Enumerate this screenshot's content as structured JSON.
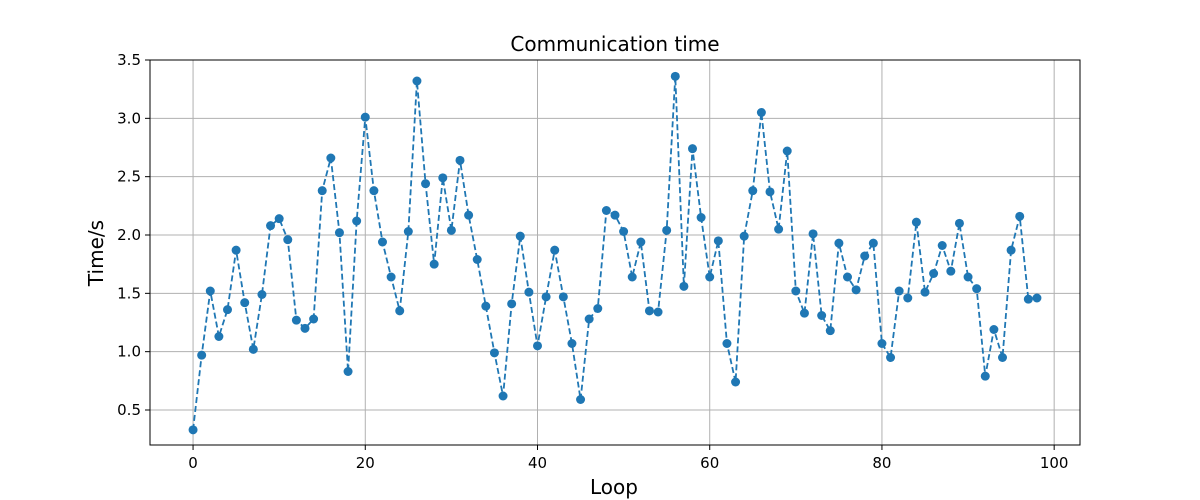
{
  "chart_data": {
    "type": "line",
    "title": "Communication time",
    "xlabel": "Loop",
    "ylabel": "Time/s",
    "xlim": [
      -5,
      103
    ],
    "ylim": [
      0.2,
      3.5
    ],
    "xticks": [
      0,
      20,
      40,
      60,
      80,
      100
    ],
    "yticks": [
      0.5,
      1.0,
      1.5,
      2.0,
      2.5,
      3.0,
      3.5
    ],
    "xtick_labels": [
      "0",
      "20",
      "40",
      "60",
      "80",
      "100"
    ],
    "ytick_labels": [
      "0.5",
      "1.0",
      "1.5",
      "2.0",
      "2.5",
      "3.0",
      "3.5"
    ],
    "grid": true,
    "line_style": "dashed",
    "marker": "circle",
    "series_color": "#1f77b4",
    "series": [
      {
        "x": [
          0,
          1,
          2,
          3,
          4,
          5,
          6,
          7,
          8,
          9,
          10,
          11,
          12,
          13,
          14,
          15,
          16,
          17,
          18,
          19,
          20,
          21,
          22,
          23,
          24,
          25,
          26,
          27,
          28,
          29,
          30,
          31,
          32,
          33,
          34,
          35,
          36,
          37,
          38,
          39,
          40,
          41,
          42,
          43,
          44,
          45,
          46,
          47,
          48,
          49,
          50,
          51,
          52,
          53,
          54,
          55,
          56,
          57,
          58,
          59,
          60,
          61,
          62,
          63,
          64,
          65,
          66,
          67,
          68,
          69,
          70,
          71,
          72,
          73,
          74,
          75,
          76,
          77,
          78,
          79,
          80,
          81,
          82,
          83,
          84,
          85,
          86,
          87,
          88,
          89,
          90,
          91,
          92,
          93,
          94,
          95,
          96,
          97,
          98
        ],
        "values": [
          0.33,
          0.97,
          1.52,
          1.13,
          1.36,
          1.87,
          1.42,
          1.02,
          1.49,
          2.08,
          2.14,
          1.96,
          1.27,
          1.2,
          1.28,
          2.38,
          2.66,
          2.02,
          0.83,
          2.12,
          3.01,
          2.38,
          1.94,
          1.64,
          1.35,
          2.03,
          3.32,
          2.44,
          1.75,
          2.49,
          2.04,
          2.64,
          2.17,
          1.79,
          1.39,
          0.99,
          0.62,
          1.41,
          1.99,
          1.51,
          1.05,
          1.47,
          1.87,
          1.47,
          1.07,
          0.59,
          1.28,
          1.37,
          2.21,
          2.17,
          2.03,
          1.64,
          1.94,
          1.35,
          1.34,
          2.04,
          3.36,
          1.56,
          2.74,
          2.15,
          1.64,
          1.95,
          1.07,
          0.74,
          1.99,
          2.38,
          3.05,
          2.37,
          2.05,
          2.72,
          1.52,
          1.33,
          2.01,
          1.31,
          1.18,
          1.93,
          1.64,
          1.53,
          1.82,
          1.93,
          1.07,
          0.95,
          1.52,
          1.46,
          2.11,
          1.51,
          1.67,
          1.91,
          1.69,
          2.1,
          1.64,
          1.54,
          0.79,
          1.19,
          0.95,
          1.87,
          2.16,
          1.45,
          1.46
        ]
      }
    ]
  }
}
